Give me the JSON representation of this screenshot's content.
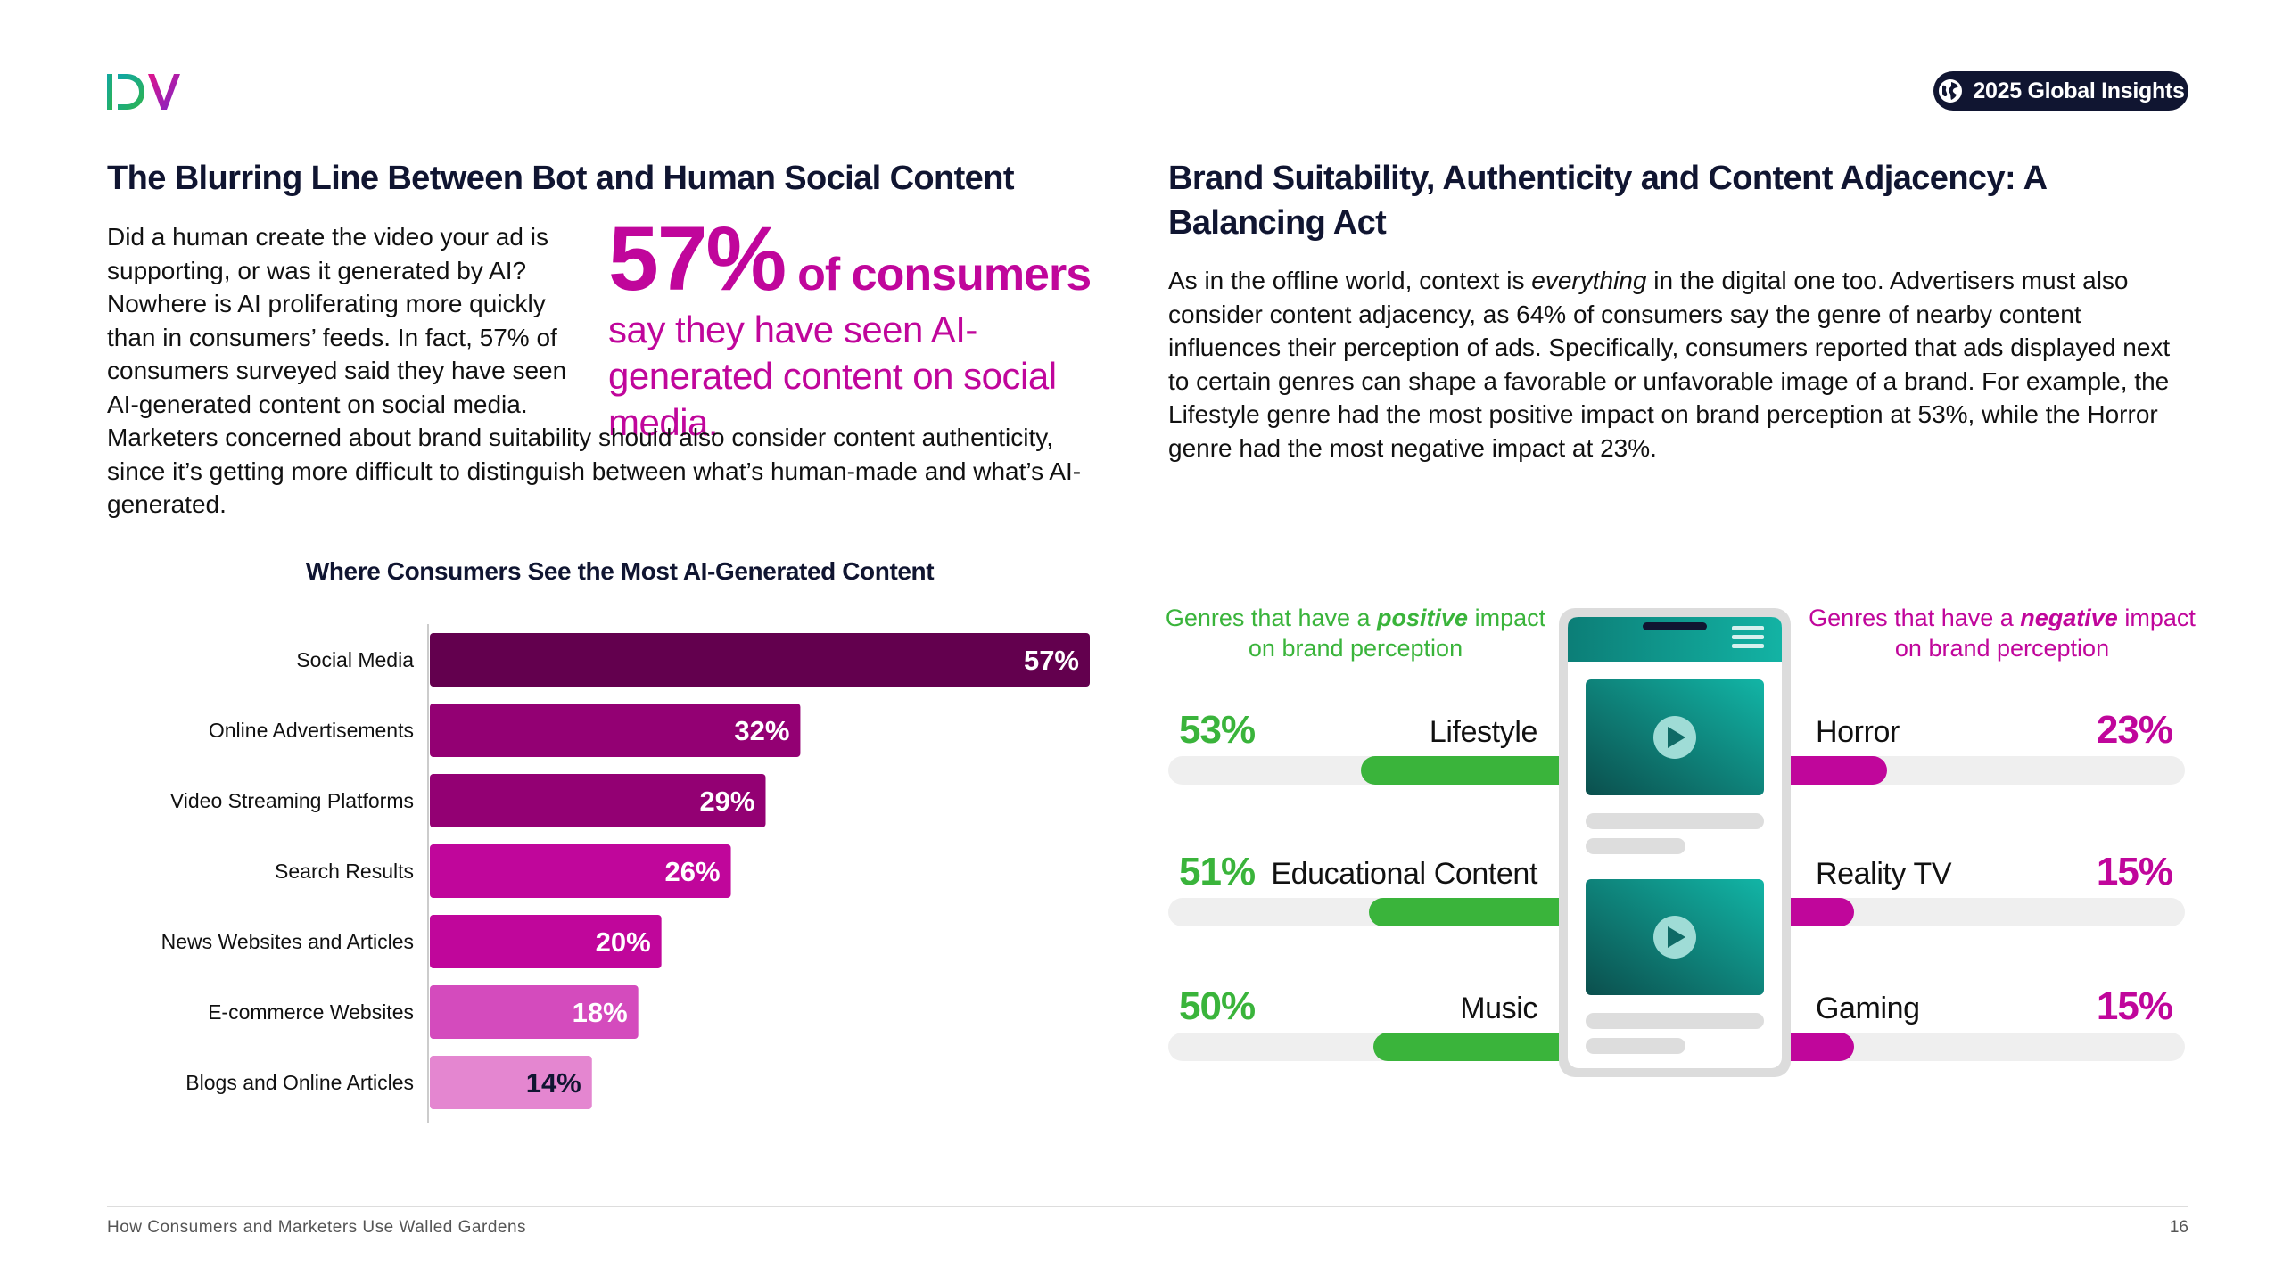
{
  "header": {
    "badge_label": "2025 Global Insights"
  },
  "left": {
    "title": "The Blurring Line Between Bot and Human Social Content",
    "intro": "Did a human create the video your ad is supporting, or was it generated by AI? Nowhere is AI proliferating more quickly than in consumers’ feeds. In fact, 57% of consumers surveyed said they have seen AI-generated content on social media.",
    "rest": "Marketers concerned about brand suitability should also consider content authenticity, since it’s getting more difficult to distinguish between what’s human-made and what’s AI-generated.",
    "stat_value": "57%",
    "stat_of": "of consumers",
    "stat_rest": "say they have seen AI-generated content on social media."
  },
  "chart_data": {
    "type": "bar",
    "orientation": "horizontal",
    "title": "Where Consumers See the Most AI-Generated Content",
    "categories": [
      "Social Media",
      "Online Advertisements",
      "Video Streaming Platforms",
      "Search Results",
      "News Websites and Articles",
      "E-commerce Websites",
      "Blogs and Online Articles"
    ],
    "values": [
      57,
      32,
      29,
      26,
      20,
      18,
      14
    ],
    "labels": [
      "57%",
      "32%",
      "29%",
      "26%",
      "20%",
      "18%",
      "14%"
    ],
    "colors": [
      "#63004e",
      "#930073",
      "#930073",
      "#c0069b",
      "#c0069b",
      "#d44bbd",
      "#e486d0"
    ],
    "label_colors": [
      "#ffffff",
      "#ffffff",
      "#ffffff",
      "#ffffff",
      "#ffffff",
      "#ffffff",
      "#101531"
    ],
    "xlim": [
      0,
      57
    ],
    "grid": false
  },
  "right": {
    "title": "Brand Suitability, Authenticity and Content Adjacency: A Balancing Act",
    "body_pre": "As in the offline world, context is ",
    "body_em": "everything",
    "body_post": " in the digital one too. Advertisers must also consider content adjacency, as 64% of consumers say the genre of nearby content influences their perception of ads. Specifically, consumers reported that ads displayed next to certain genres can shape a favorable or unfavorable image of a brand. For example, the Lifestyle genre had the most positive impact on brand perception at 53%, while the Horror genre had the most negative impact at 23%.",
    "positive_head_pre": "Genres that have a ",
    "positive_head_em": "positive",
    "positive_head_post": " impact on brand perception",
    "negative_head_pre": "Genres that have a ",
    "negative_head_em": "negative",
    "negative_head_post": " impact on brand perception",
    "positive": [
      {
        "genre": "Lifestyle",
        "label": "53%",
        "value": 53
      },
      {
        "genre": "Educational Content",
        "label": "51%",
        "value": 51
      },
      {
        "genre": "Music",
        "label": "50%",
        "value": 50
      }
    ],
    "negative": [
      {
        "genre": "Horror",
        "label": "23%",
        "value": 23
      },
      {
        "genre": "Reality TV",
        "label": "15%",
        "value": 15
      },
      {
        "genre": "Gaming",
        "label": "15%",
        "value": 15
      }
    ],
    "positive_color": "#3ab43b",
    "negative_color": "#c0069b"
  },
  "footer": {
    "text": "How Consumers and Marketers Use Walled Gardens",
    "page": "16"
  }
}
